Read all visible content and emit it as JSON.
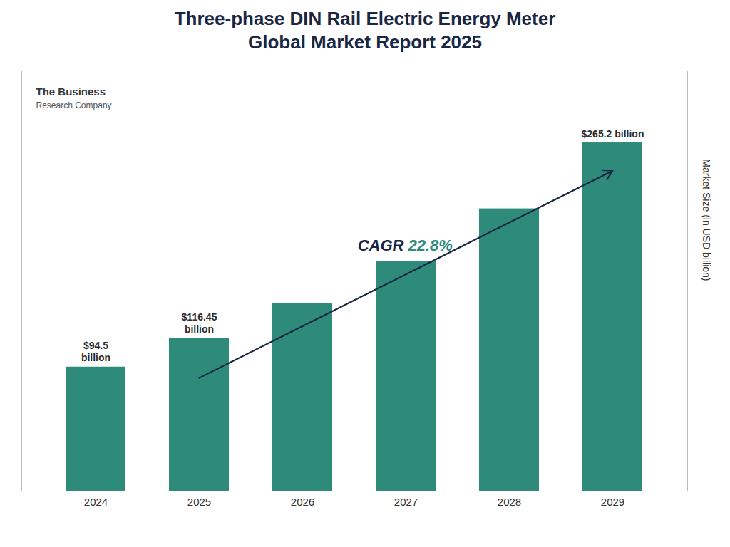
{
  "chart_data": {
    "type": "bar",
    "title": "Three-phase DIN Rail Electric Energy Meter\nGlobal Market Report 2025",
    "categories": [
      "2024",
      "2025",
      "2026",
      "2027",
      "2028",
      "2029"
    ],
    "values": [
      94.5,
      116.45,
      143.0,
      175.0,
      215.0,
      265.2
    ],
    "color": "#2e8b7a",
    "ylabel": "Market Size (in USD billion)",
    "ylim": [
      0,
      320
    ],
    "yticks": [],
    "tick_labels": "x",
    "grid": false,
    "data_labels": true,
    "value_labels": [
      "$94.5\nbillion",
      "$116.45\nbillion",
      null,
      null,
      null,
      "$265.2 billion"
    ],
    "annotations": [
      "CAGR",
      "22.8%",
      "The Business",
      "Research Company"
    ]
  }
}
